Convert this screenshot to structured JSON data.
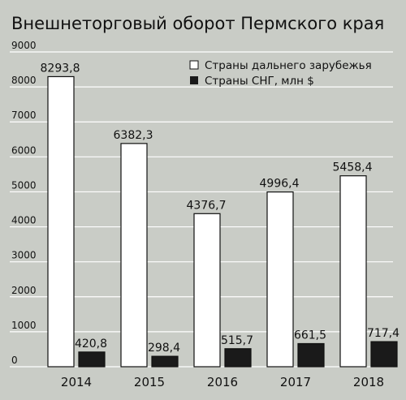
{
  "chart_data": {
    "type": "bar",
    "title": "Внешнеторговый оборот Пермского края",
    "categories": [
      "2014",
      "2015",
      "2016",
      "2017",
      "2018"
    ],
    "series": [
      {
        "name": "Страны дальнего зарубежья",
        "values": [
          8293.8,
          6382.3,
          4376.7,
          4996.4,
          5458.4
        ],
        "labels": [
          "8293,8",
          "6382,3",
          "4376,7",
          "4996,4",
          "5458,4"
        ],
        "color": "#ffffff"
      },
      {
        "name": "Страны СНГ, млн $",
        "values": [
          420.8,
          298.4,
          515.7,
          661.5,
          717.4
        ],
        "labels": [
          "420,8",
          "298,4",
          "515,7",
          "661,5",
          "717,4"
        ],
        "color": "#1a1a1a"
      }
    ],
    "yticks": [
      "0",
      "1000",
      "2000",
      "3000",
      "4000",
      "5000",
      "6000",
      "7000",
      "8000",
      "9000"
    ],
    "ylim": [
      0,
      9000
    ],
    "grid": true,
    "legend": "top-right",
    "background_color": "#c9ccc6",
    "grid_color": "#ffffff"
  }
}
